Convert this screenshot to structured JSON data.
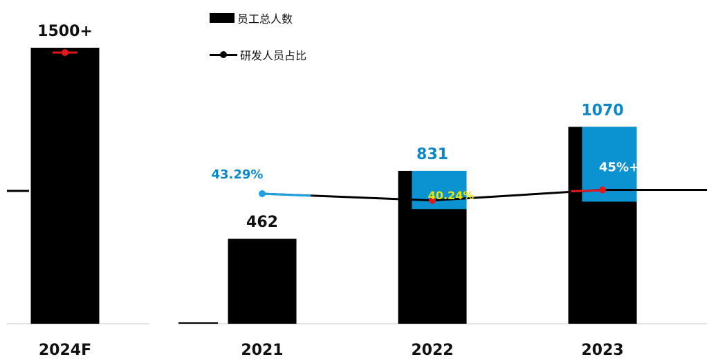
{
  "chart_data": {
    "type": "bar",
    "categories": [
      "2024F",
      "2021",
      "2022",
      "2023"
    ],
    "series": [
      {
        "name": "员工总人数",
        "kind": "bar",
        "values": [
          1500,
          462,
          831,
          1070
        ],
        "labels": [
          "1500+",
          "462",
          "831",
          "1070"
        ]
      },
      {
        "name": "研发人员占比",
        "kind": "line",
        "values": [
          null,
          43.29,
          40.24,
          45.0
        ],
        "labels": [
          "",
          "43.29%",
          "40.24%",
          "45%+"
        ]
      }
    ],
    "ylim": [
      0,
      1500
    ],
    "y2lim": [
      0,
      100
    ],
    "legend_position": "top",
    "grid": false,
    "colors": {
      "bar": "#000000",
      "bar_highlight": "#0a93d0",
      "line": "#000000",
      "line_accent_red": "#e0181b",
      "line_accent_blue": "#1aa3e0",
      "label_blue": "#0a88c9",
      "label_black": "#111111",
      "baseline": "#d9d9d9"
    }
  }
}
